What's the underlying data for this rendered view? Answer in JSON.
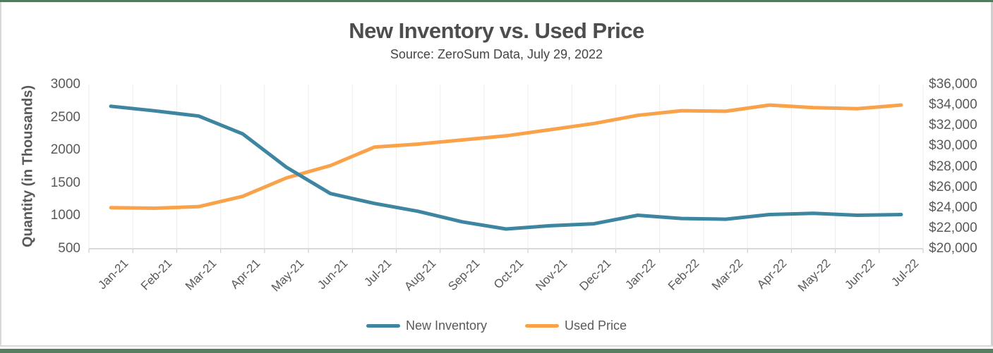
{
  "colors": {
    "new_inventory_line": "#3D85A0",
    "used_price_line": "#F9A24A",
    "title_text": "#4d4d4d",
    "axis_text": "#595959",
    "gridline": "#ededed",
    "axis_line": "#d9d9d9",
    "tick_mark": "#c4c4c4",
    "top_rule_green": "#537a5d",
    "bottom_rule_green": "#587e62"
  },
  "header": {
    "title": "New Inventory vs. Used Price",
    "subtitle": "Source: ZeroSum Data, July 29, 2022"
  },
  "legend": {
    "items": [
      {
        "label": "New Inventory",
        "color": "#3D85A0"
      },
      {
        "label": "Used Price",
        "color": "#F9A24A"
      }
    ]
  },
  "chart_data": {
    "type": "line",
    "title": "New Inventory vs. Used Price",
    "subtitle": "Source: ZeroSum Data, July 29, 2022",
    "categories": [
      "Jan-21",
      "Feb-21",
      "Mar-21",
      "Apr-21",
      "May-21",
      "Jun-21",
      "Jul-21",
      "Aug-21",
      "Sep-21",
      "Oct-21",
      "Nov-21",
      "Dec-21",
      "Jan-22",
      "Feb-22",
      "Mar-22",
      "Apr-22",
      "May-22",
      "Jun-22",
      "Jul-22"
    ],
    "series": [
      {
        "name": "Used Price",
        "axis": "right",
        "color": "#F9A24A",
        "values": [
          24000,
          23950,
          24100,
          25100,
          26900,
          28100,
          29900,
          30200,
          30600,
          31000,
          31600,
          32200,
          33000,
          33450,
          33400,
          34000,
          33750,
          33650,
          34000
        ]
      },
      {
        "name": "New Inventory",
        "axis": "left",
        "color": "#3D85A0",
        "values": [
          2670,
          2600,
          2520,
          2250,
          1740,
          1340,
          1190,
          1070,
          910,
          800,
          850,
          880,
          1010,
          960,
          950,
          1020,
          1040,
          1010,
          1020
        ]
      }
    ],
    "left_axis": {
      "title": "Quantity (in Thousands)",
      "min": 500,
      "max": 3000,
      "tick_values": [
        3000,
        2500,
        2000,
        1500,
        1000,
        500
      ],
      "tick_labels": [
        "3000",
        "2500",
        "2000",
        "1500",
        "1000",
        "500"
      ]
    },
    "right_axis": {
      "min": 20000,
      "max": 36000,
      "tick_values": [
        36000,
        34000,
        32000,
        30000,
        28000,
        26000,
        24000,
        22000,
        20000
      ],
      "tick_labels": [
        "$36,000",
        "$34,000",
        "$32,000",
        "$30,000",
        "$28,000",
        "$26,000",
        "$24,000",
        "$22,000",
        "$20,000"
      ]
    },
    "grid": "vertical-category-lines",
    "legend_position": "bottom"
  }
}
